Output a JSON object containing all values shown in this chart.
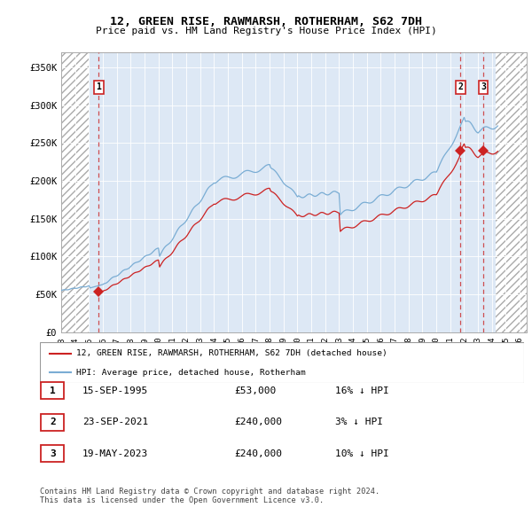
{
  "title": "12, GREEN RISE, RAWMARSH, ROTHERHAM, S62 7DH",
  "subtitle": "Price paid vs. HM Land Registry's House Price Index (HPI)",
  "xlim": [
    1993.0,
    2026.5
  ],
  "ylim": [
    0,
    370000
  ],
  "yticks": [
    0,
    50000,
    100000,
    150000,
    200000,
    250000,
    300000,
    350000
  ],
  "ytick_labels": [
    "£0",
    "£50K",
    "£100K",
    "£150K",
    "£200K",
    "£250K",
    "£300K",
    "£350K"
  ],
  "sale_dates": [
    1995.71,
    2021.73,
    2023.38
  ],
  "sale_prices": [
    53000,
    240000,
    240000
  ],
  "sale_labels": [
    "1",
    "2",
    "3"
  ],
  "hpi_line_color": "#7aadd4",
  "sale_line_color": "#cc2222",
  "marker_color": "#cc2222",
  "dashed_line_color": "#cc3333",
  "bg_color": "#dde8f5",
  "legend_entries": [
    "12, GREEN RISE, RAWMARSH, ROTHERHAM, S62 7DH (detached house)",
    "HPI: Average price, detached house, Rotherham"
  ],
  "table_rows": [
    {
      "label": "1",
      "date": "15-SEP-1995",
      "price": "£53,000",
      "hpi": "16% ↓ HPI"
    },
    {
      "label": "2",
      "date": "23-SEP-2021",
      "price": "£240,000",
      "hpi": "3% ↓ HPI"
    },
    {
      "label": "3",
      "date": "19-MAY-2023",
      "price": "£240,000",
      "hpi": "10% ↓ HPI"
    }
  ],
  "footer": "Contains HM Land Registry data © Crown copyright and database right 2024.\nThis data is licensed under the Open Government Licence v3.0."
}
